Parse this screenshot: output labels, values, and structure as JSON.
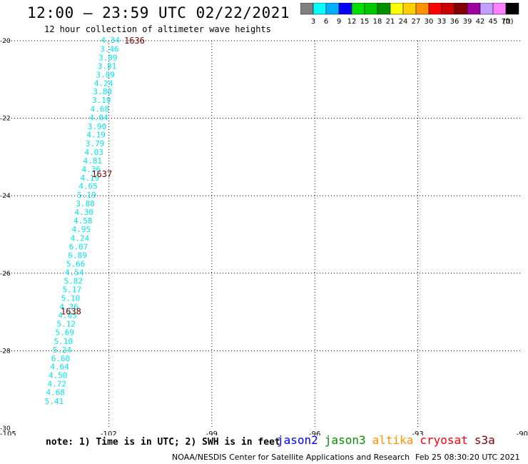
{
  "title": "12:00 — 23:59 UTC 02/22/2021",
  "subtitle": "12 hour collection of altimeter wave heights",
  "legend": {
    "colors": [
      "#808080",
      "#00ffff",
      "#00b0ff",
      "#0000ff",
      "#00e000",
      "#00c800",
      "#009000",
      "#ffff00",
      "#ffd000",
      "#ff9000",
      "#ff0000",
      "#c80000",
      "#800000",
      "#a000a0",
      "#c0a0ff",
      "#ff80ff",
      "#000000"
    ],
    "labels": [
      "3",
      "6",
      "9",
      "12",
      "15",
      "18",
      "21",
      "24",
      "27",
      "30",
      "33",
      "36",
      "39",
      "42",
      "45",
      "70",
      "(ft)"
    ]
  },
  "note": "note: 1) Time is in UTC; 2) SWH is in feet",
  "satellites": [
    {
      "name": "jason2",
      "color": "#0000ff"
    },
    {
      "name": "jason3",
      "color": "#009000"
    },
    {
      "name": "altika",
      "color": "#ff9000"
    },
    {
      "name": "cryosat",
      "color": "#ff0000"
    },
    {
      "name": "s3a",
      "color": "#800000"
    }
  ],
  "credit": "NOAA/NESDIS Center for Satellite Applications and Research",
  "credit_time": "Feb 25 08:30:20 UTC 2021",
  "chart_data": {
    "type": "scatter",
    "xlim": [
      -105,
      -90
    ],
    "ylim": [
      -30,
      -20
    ],
    "x_ticks": [
      "-105",
      "-102",
      "-99",
      "-96",
      "-93",
      "-90"
    ],
    "y_ticks": [
      "-20",
      "-22",
      "-24",
      "-26",
      "-28",
      "-30"
    ],
    "grid": true,
    "point_color": "#00e5ee",
    "time_color": "#800000",
    "points": [
      {
        "lon": -101.95,
        "lat": -20.0,
        "swh": "4.34"
      },
      {
        "lon": -101.98,
        "lat": -20.23,
        "swh": "3.46"
      },
      {
        "lon": -102.02,
        "lat": -20.45,
        "swh": "3.09"
      },
      {
        "lon": -102.05,
        "lat": -20.67,
        "swh": "3.81"
      },
      {
        "lon": -102.1,
        "lat": -20.89,
        "swh": "3.89"
      },
      {
        "lon": -102.15,
        "lat": -21.11,
        "swh": "4.24"
      },
      {
        "lon": -102.18,
        "lat": -21.33,
        "swh": "3.80"
      },
      {
        "lon": -102.21,
        "lat": -21.55,
        "swh": "3.19"
      },
      {
        "lon": -102.26,
        "lat": -21.78,
        "swh": "4.68"
      },
      {
        "lon": -102.29,
        "lat": -22.0,
        "swh": "4.04"
      },
      {
        "lon": -102.34,
        "lat": -22.23,
        "swh": "3.90"
      },
      {
        "lon": -102.37,
        "lat": -22.44,
        "swh": "4.19"
      },
      {
        "lon": -102.4,
        "lat": -22.67,
        "swh": "3.79"
      },
      {
        "lon": -102.43,
        "lat": -22.89,
        "swh": "4.03"
      },
      {
        "lon": -102.47,
        "lat": -23.11,
        "swh": "4.81"
      },
      {
        "lon": -102.51,
        "lat": -23.33,
        "swh": "4.36"
      },
      {
        "lon": -102.55,
        "lat": -23.55,
        "swh": "4.19"
      },
      {
        "lon": -102.6,
        "lat": -23.77,
        "swh": "4.65"
      },
      {
        "lon": -102.64,
        "lat": -24.0,
        "swh": "5.19"
      },
      {
        "lon": -102.68,
        "lat": -24.22,
        "swh": "3.88"
      },
      {
        "lon": -102.72,
        "lat": -24.44,
        "swh": "4.30"
      },
      {
        "lon": -102.75,
        "lat": -24.66,
        "swh": "4.58"
      },
      {
        "lon": -102.8,
        "lat": -24.88,
        "swh": "4.95"
      },
      {
        "lon": -102.84,
        "lat": -25.11,
        "swh": "4.24"
      },
      {
        "lon": -102.88,
        "lat": -25.33,
        "swh": "6.07"
      },
      {
        "lon": -102.91,
        "lat": -25.55,
        "swh": "6.89"
      },
      {
        "lon": -102.96,
        "lat": -25.77,
        "swh": "5.66"
      },
      {
        "lon": -103.0,
        "lat": -25.99,
        "swh": "4.54"
      },
      {
        "lon": -103.03,
        "lat": -26.22,
        "swh": "5.82"
      },
      {
        "lon": -103.07,
        "lat": -26.44,
        "swh": "5.17"
      },
      {
        "lon": -103.11,
        "lat": -26.66,
        "swh": "5.10"
      },
      {
        "lon": -103.16,
        "lat": -26.88,
        "swh": "4.26"
      },
      {
        "lon": -103.2,
        "lat": -27.1,
        "swh": "4.83"
      },
      {
        "lon": -103.24,
        "lat": -27.32,
        "swh": "5.12"
      },
      {
        "lon": -103.28,
        "lat": -27.54,
        "swh": "5.69"
      },
      {
        "lon": -103.32,
        "lat": -27.77,
        "swh": "5.10"
      },
      {
        "lon": -103.36,
        "lat": -27.99,
        "swh": "5.24"
      },
      {
        "lon": -103.4,
        "lat": -28.21,
        "swh": "6.60"
      },
      {
        "lon": -103.43,
        "lat": -28.43,
        "swh": "4.64"
      },
      {
        "lon": -103.48,
        "lat": -28.65,
        "swh": "4.50"
      },
      {
        "lon": -103.51,
        "lat": -28.87,
        "swh": "4.72"
      },
      {
        "lon": -103.55,
        "lat": -29.09,
        "swh": "4.68"
      },
      {
        "lon": -103.59,
        "lat": -29.32,
        "swh": "5.41"
      }
    ],
    "time_labels": [
      {
        "lon": -101.25,
        "lat": -20.0,
        "text": "1636"
      },
      {
        "lon": -102.2,
        "lat": -23.44,
        "text": "1637"
      },
      {
        "lon": -103.1,
        "lat": -26.99,
        "text": "1638"
      }
    ]
  }
}
